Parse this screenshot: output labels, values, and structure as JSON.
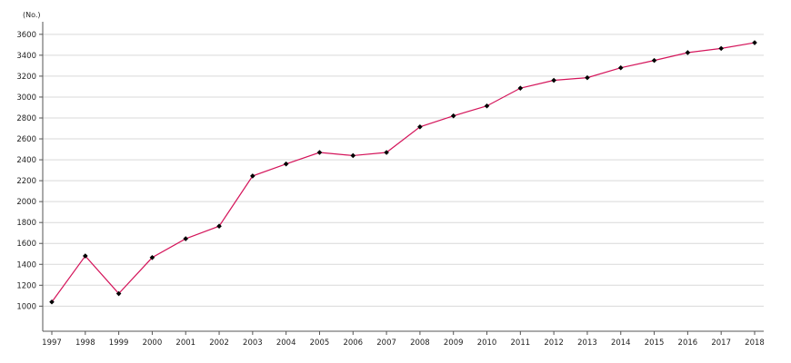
{
  "chart_data": {
    "type": "line",
    "unit_label": "(No.)",
    "x": [
      "1997",
      "1998",
      "1999",
      "2000",
      "2001",
      "2002",
      "2003",
      "2004",
      "2005",
      "2006",
      "2007",
      "2008",
      "2009",
      "2010",
      "2011",
      "2012",
      "2013",
      "2014",
      "2015",
      "2016",
      "2017",
      "2018"
    ],
    "series": [
      {
        "values": [
          1040,
          1480,
          1120,
          1465,
          1645,
          1765,
          2245,
          2360,
          2470,
          2440,
          2470,
          2715,
          2820,
          2915,
          3085,
          3160,
          3185,
          3280,
          3350,
          3425,
          3465,
          3520
        ],
        "line_color": "#d4145a",
        "marker_color": "#000000"
      }
    ],
    "ylim": [
      760,
      3720
    ],
    "yticks": [
      1000,
      1200,
      1400,
      1600,
      1800,
      2000,
      2200,
      2400,
      2600,
      2800,
      3000,
      3200,
      3400,
      3600
    ],
    "grid": true,
    "grid_color": "#d9d9d9",
    "axis_color": "#555555",
    "legend": "none"
  }
}
